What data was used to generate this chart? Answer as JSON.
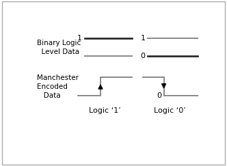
{
  "bg_color": "#ffffff",
  "border_color": "#aaaaaa",
  "line_color_dark": "#222222",
  "line_color_mid": "#888888",
  "arrow_color": "#000000",
  "label_color": "#000000",
  "left_label": "Logic ‘1’",
  "right_label": "Logic ‘0’",
  "binary_logic_text": "Binary Logic\n  Level Data",
  "manchester_text": "Manchester\n Encoded\n   Data",
  "fig_width": 3.32,
  "fig_height": 2.43,
  "dpi": 100,
  "lw": 1.4
}
